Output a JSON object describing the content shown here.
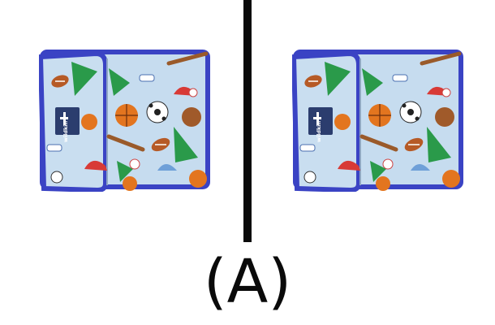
{
  "caption": "(A)",
  "products": [
    {
      "brand_label": "wildkin"
    },
    {
      "brand_label": "wildkin"
    }
  ],
  "colors": {
    "fabric": "#c6dcef",
    "trim": "#3a43c4",
    "basketball": "#e3751f",
    "pennant": "#2a9a4a",
    "logo_patch": "#2b3d6e"
  }
}
